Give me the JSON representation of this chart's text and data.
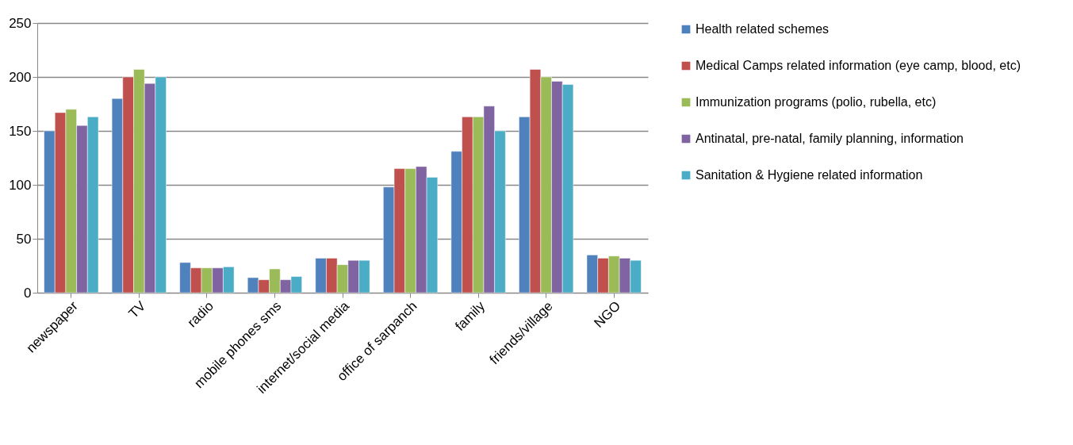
{
  "chart_data": {
    "type": "bar",
    "categories": [
      "newspaper",
      "TV",
      "radio",
      "mobile phones sms",
      "internet/social media",
      "office of sarpanch",
      "family",
      "friends/village",
      "NGO"
    ],
    "series": [
      {
        "name": "Health related schemes",
        "color": "#4f81bd",
        "values": [
          150,
          180,
          28,
          14,
          32,
          98,
          131,
          163,
          35
        ]
      },
      {
        "name": "Medical Camps related information (eye camp, blood, etc)",
        "color": "#c0504d",
        "values": [
          167,
          200,
          23,
          12,
          32,
          115,
          163,
          207,
          32
        ]
      },
      {
        "name": "Immunization programs (polio, rubella, etc)",
        "color": "#9bbb59",
        "values": [
          170,
          207,
          23,
          22,
          26,
          115,
          163,
          200,
          34
        ]
      },
      {
        "name": "Antinatal, pre-natal, family planning, information",
        "color": "#8064a2",
        "values": [
          155,
          194,
          23,
          12,
          30,
          117,
          173,
          196,
          32
        ]
      },
      {
        "name": "Sanitation & Hygiene related information",
        "color": "#4bacc6",
        "values": [
          163,
          200,
          24,
          15,
          30,
          107,
          150,
          193,
          30
        ]
      }
    ],
    "ylim": [
      0,
      250
    ],
    "yticks": [
      0,
      50,
      100,
      150,
      200,
      250
    ],
    "grid": "y",
    "legend": "right"
  }
}
